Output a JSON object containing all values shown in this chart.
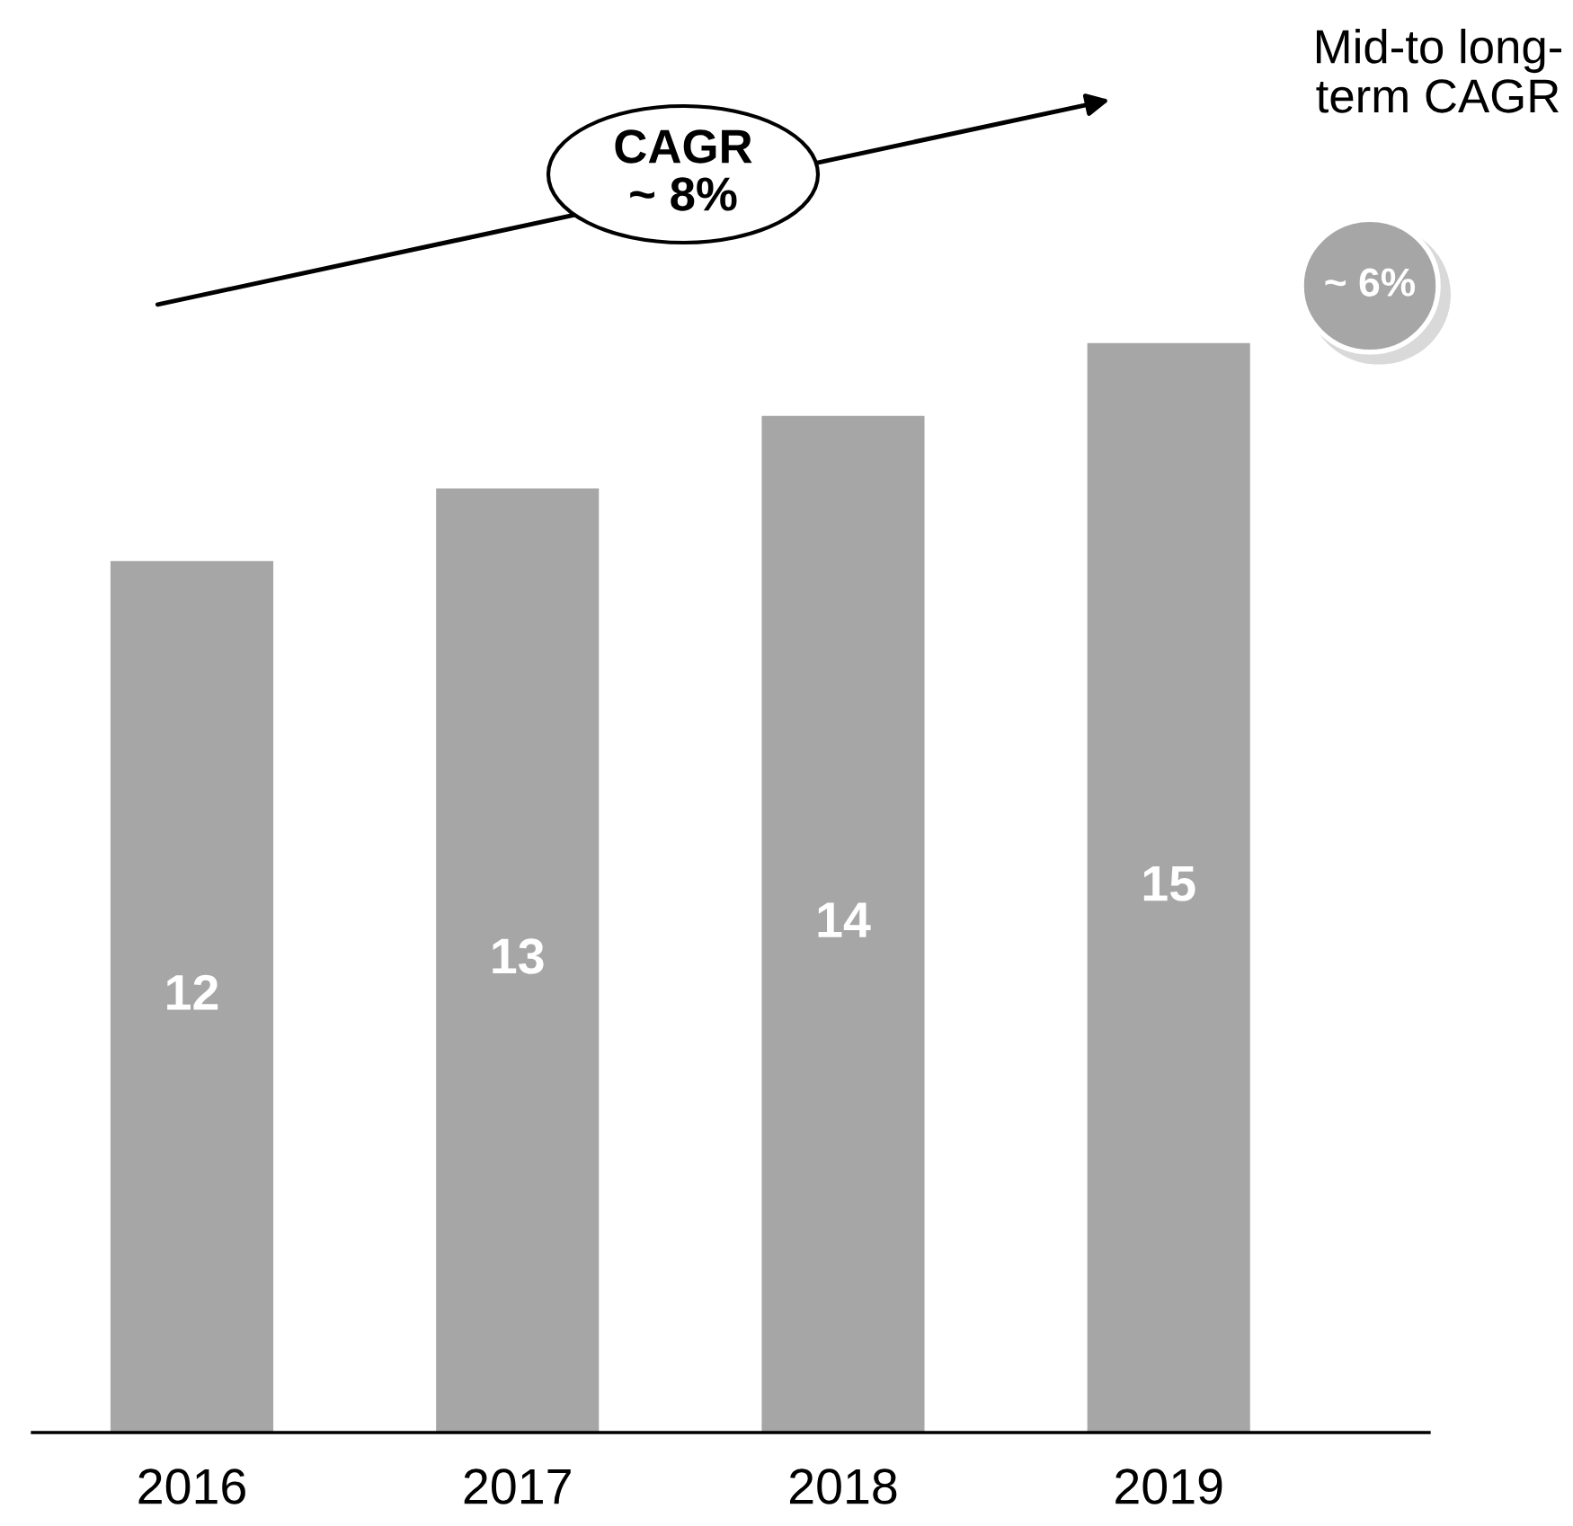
{
  "chart_data": {
    "type": "bar",
    "categories": [
      "2016",
      "2017",
      "2018",
      "2019"
    ],
    "values": [
      12,
      13,
      14,
      15
    ],
    "color": "#a6a6a6",
    "data_labels": true,
    "tick_labels": "x",
    "grid": false,
    "legend": false,
    "annotations": [
      "CAGR\n~ 8%",
      "Mid-to long-\nterm CAGR",
      "~ 6%"
    ]
  }
}
